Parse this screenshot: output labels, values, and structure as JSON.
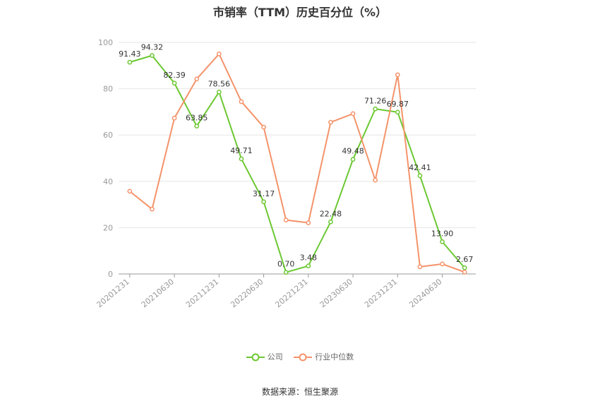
{
  "chart_data": {
    "type": "line",
    "title": "市销率（TTM）历史百分位（%）",
    "x": [
      "20201231",
      "",
      "20210630",
      "",
      "20211231",
      "",
      "20220630",
      "",
      "20221231",
      "",
      "20230630",
      "",
      "20231231",
      "",
      "20240630",
      ""
    ],
    "xticks": [
      "20201231",
      "20210630",
      "20211231",
      "20220630",
      "20221231",
      "20230630",
      "20231231",
      "20240630"
    ],
    "yticks": [
      "0",
      "20",
      "40",
      "60",
      "80",
      "100"
    ],
    "ylim": [
      0,
      100
    ],
    "grid": true,
    "legend_position": "bottom",
    "series": [
      {
        "name": "公司",
        "color": "#6cc832",
        "values": [
          91.43,
          94.32,
          82.39,
          63.85,
          78.56,
          49.71,
          31.17,
          0.7,
          3.48,
          22.48,
          49.48,
          71.26,
          69.87,
          42.41,
          13.9,
          2.67
        ],
        "labels": [
          "91.43",
          "94.32",
          "82.39",
          "63.85",
          "78.56",
          "49.71",
          "31.17",
          "0.70",
          "3.48",
          "22.48",
          "49.48",
          "71.26",
          "69.87",
          "42.41",
          "13.90",
          "2.67"
        ]
      },
      {
        "name": "行业中位数",
        "color": "#f4936a",
        "values": [
          35.7,
          28.0,
          67.3,
          84.2,
          95.0,
          74.4,
          63.4,
          23.3,
          22.1,
          65.5,
          69.2,
          40.5,
          86.0,
          3.1,
          4.3,
          0.8
        ]
      }
    ]
  },
  "source": "数据来源：恒生聚源"
}
